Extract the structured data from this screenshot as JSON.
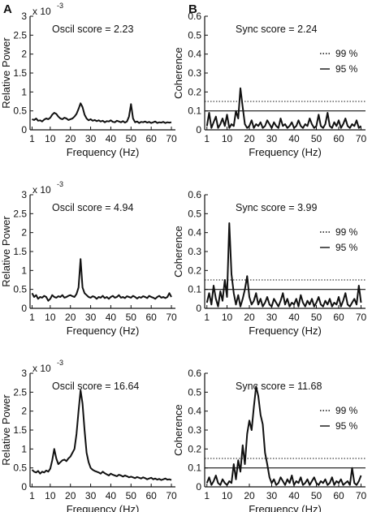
{
  "panel_labels": {
    "left": "A",
    "right": "B"
  },
  "chart_data": [
    {
      "type": "line",
      "panel": "A",
      "title": "Oscil score = 2.23",
      "xlabel": "Frequency (Hz)",
      "ylabel": "Relative Power",
      "y_exponent": {
        "base": "x 10",
        "exponent": "-3"
      },
      "xlim": [
        0,
        72
      ],
      "ylim": [
        0,
        3
      ],
      "xticks": [
        1,
        10,
        20,
        30,
        40,
        50,
        60,
        70
      ],
      "yticks": [
        0,
        0.5,
        1,
        1.5,
        2,
        2.5,
        3
      ],
      "ytick_labels": [
        "0",
        "0.5",
        "1",
        "1.5",
        "2",
        "2.5",
        "3"
      ],
      "series": [
        {
          "x": [
            1,
            2,
            3,
            4,
            5,
            6,
            7,
            8,
            9,
            10,
            11,
            12,
            13,
            14,
            15,
            16,
            17,
            18,
            19,
            20,
            21,
            22,
            23,
            24,
            25,
            26,
            27,
            28,
            29,
            30,
            31,
            32,
            33,
            34,
            35,
            36,
            37,
            38,
            39,
            40,
            41,
            42,
            43,
            44,
            45,
            46,
            47,
            48,
            49,
            50,
            51,
            52,
            53,
            54,
            55,
            56,
            57,
            58,
            59,
            60,
            61,
            62,
            63,
            64,
            65,
            66,
            67,
            68,
            69,
            70
          ],
          "y": [
            0.28,
            0.26,
            0.3,
            0.24,
            0.25,
            0.22,
            0.27,
            0.3,
            0.28,
            0.32,
            0.4,
            0.45,
            0.42,
            0.35,
            0.3,
            0.28,
            0.32,
            0.3,
            0.26,
            0.28,
            0.3,
            0.35,
            0.42,
            0.55,
            0.7,
            0.6,
            0.4,
            0.3,
            0.25,
            0.28,
            0.24,
            0.26,
            0.23,
            0.25,
            0.22,
            0.24,
            0.2,
            0.23,
            0.22,
            0.25,
            0.21,
            0.2,
            0.24,
            0.22,
            0.2,
            0.23,
            0.19,
            0.22,
            0.35,
            0.68,
            0.3,
            0.2,
            0.22,
            0.18,
            0.21,
            0.2,
            0.22,
            0.19,
            0.21,
            0.18,
            0.2,
            0.22,
            0.18,
            0.2,
            0.19,
            0.21,
            0.18,
            0.2,
            0.19,
            0.2
          ]
        }
      ]
    },
    {
      "type": "line",
      "panel": "B",
      "title": "Sync score = 2.24",
      "xlabel": "Frequency (Hz)",
      "ylabel": "Coherence",
      "xlim": [
        0,
        72
      ],
      "ylim": [
        0,
        0.6
      ],
      "xticks": [
        1,
        10,
        20,
        30,
        40,
        50,
        60,
        70
      ],
      "yticks": [
        0,
        0.1,
        0.2,
        0.3,
        0.4,
        0.5,
        0.6
      ],
      "ytick_labels": [
        "0",
        "0.1",
        "0.2",
        "0.3",
        "0.4",
        "0.5",
        "0.6"
      ],
      "thresholds": [
        {
          "name": "99 %",
          "value": 0.15,
          "style": "dotted"
        },
        {
          "name": "95 %",
          "value": 0.1,
          "style": "solid"
        }
      ],
      "series": [
        {
          "x": [
            1,
            2,
            3,
            4,
            5,
            6,
            7,
            8,
            9,
            10,
            11,
            12,
            13,
            14,
            15,
            16,
            17,
            18,
            19,
            20,
            21,
            22,
            23,
            24,
            25,
            26,
            27,
            28,
            29,
            30,
            31,
            32,
            33,
            34,
            35,
            36,
            37,
            38,
            39,
            40,
            41,
            42,
            43,
            44,
            45,
            46,
            47,
            48,
            49,
            50,
            51,
            52,
            53,
            54,
            55,
            56,
            57,
            58,
            59,
            60,
            61,
            62,
            63,
            64,
            65,
            66,
            67,
            68,
            69,
            70
          ],
          "y": [
            0.02,
            0.09,
            0.01,
            0.04,
            0.07,
            0.01,
            0.03,
            0.06,
            0.02,
            0.08,
            0.01,
            0.03,
            0.02,
            0.1,
            0.06,
            0.22,
            0.12,
            0.03,
            0.01,
            0.02,
            0.05,
            0.01,
            0.03,
            0.02,
            0.04,
            0.01,
            0.02,
            0.05,
            0.03,
            0.01,
            0.04,
            0.02,
            0.01,
            0.06,
            0.02,
            0.03,
            0.01,
            0.02,
            0.04,
            0.01,
            0.02,
            0.05,
            0.02,
            0.01,
            0.03,
            0.02,
            0.06,
            0.03,
            0.01,
            0.02,
            0.08,
            0.02,
            0.01,
            0.03,
            0.09,
            0.02,
            0.01,
            0.04,
            0.02,
            0.05,
            0.01,
            0.03,
            0.06,
            0.02,
            0.01,
            0.03,
            0.02,
            0.05,
            0.01,
            0.02
          ]
        }
      ]
    },
    {
      "type": "line",
      "panel": "A",
      "title": "Oscil score = 4.94",
      "xlabel": "Frequency (Hz)",
      "ylabel": "Relative Power",
      "y_exponent": {
        "base": "x 10",
        "exponent": "-3"
      },
      "xlim": [
        0,
        72
      ],
      "ylim": [
        0,
        3
      ],
      "xticks": [
        1,
        10,
        20,
        30,
        40,
        50,
        60,
        70
      ],
      "yticks": [
        0,
        0.5,
        1,
        1.5,
        2,
        2.5,
        3
      ],
      "ytick_labels": [
        "0",
        "0.5",
        "1",
        "1.5",
        "2",
        "2.5",
        "3"
      ],
      "series": [
        {
          "x": [
            1,
            2,
            3,
            4,
            5,
            6,
            7,
            8,
            9,
            10,
            11,
            12,
            13,
            14,
            15,
            16,
            17,
            18,
            19,
            20,
            21,
            22,
            23,
            24,
            25,
            26,
            27,
            28,
            29,
            30,
            31,
            32,
            33,
            34,
            35,
            36,
            37,
            38,
            39,
            40,
            41,
            42,
            43,
            44,
            45,
            46,
            47,
            48,
            49,
            50,
            51,
            52,
            53,
            54,
            55,
            56,
            57,
            58,
            59,
            60,
            61,
            62,
            63,
            64,
            65,
            66,
            67,
            68,
            69,
            70
          ],
          "y": [
            0.4,
            0.3,
            0.35,
            0.25,
            0.3,
            0.28,
            0.33,
            0.3,
            0.2,
            0.25,
            0.35,
            0.3,
            0.28,
            0.32,
            0.3,
            0.35,
            0.28,
            0.3,
            0.33,
            0.35,
            0.32,
            0.3,
            0.38,
            0.55,
            1.3,
            0.55,
            0.4,
            0.35,
            0.3,
            0.28,
            0.32,
            0.3,
            0.25,
            0.3,
            0.28,
            0.33,
            0.27,
            0.3,
            0.25,
            0.3,
            0.33,
            0.28,
            0.3,
            0.35,
            0.28,
            0.3,
            0.27,
            0.32,
            0.3,
            0.28,
            0.33,
            0.3,
            0.26,
            0.3,
            0.28,
            0.32,
            0.3,
            0.27,
            0.33,
            0.3,
            0.28,
            0.25,
            0.3,
            0.33,
            0.28,
            0.3,
            0.27,
            0.3,
            0.4,
            0.3
          ]
        }
      ]
    },
    {
      "type": "line",
      "panel": "B",
      "title": "Sync score = 3.99",
      "xlabel": "Frequency (Hz)",
      "ylabel": "Coherence",
      "xlim": [
        0,
        72
      ],
      "ylim": [
        0,
        0.6
      ],
      "xticks": [
        1,
        10,
        20,
        30,
        40,
        50,
        60,
        70
      ],
      "yticks": [
        0,
        0.1,
        0.2,
        0.3,
        0.4,
        0.5,
        0.6
      ],
      "ytick_labels": [
        "0",
        "0.1",
        "0.2",
        "0.3",
        "0.4",
        "0.5",
        "0.6"
      ],
      "thresholds": [
        {
          "name": "99 %",
          "value": 0.15,
          "style": "dotted"
        },
        {
          "name": "95 %",
          "value": 0.1,
          "style": "solid"
        }
      ],
      "series": [
        {
          "x": [
            1,
            2,
            3,
            4,
            5,
            6,
            7,
            8,
            9,
            10,
            11,
            12,
            13,
            14,
            15,
            16,
            17,
            18,
            19,
            20,
            21,
            22,
            23,
            24,
            25,
            26,
            27,
            28,
            29,
            30,
            31,
            32,
            33,
            34,
            35,
            36,
            37,
            38,
            39,
            40,
            41,
            42,
            43,
            44,
            45,
            46,
            47,
            48,
            49,
            50,
            51,
            52,
            53,
            54,
            55,
            56,
            57,
            58,
            59,
            60,
            61,
            62,
            63,
            64,
            65,
            66,
            67,
            68,
            69,
            70
          ],
          "y": [
            0.03,
            0.08,
            0.02,
            0.12,
            0.05,
            0.01,
            0.09,
            0.04,
            0.15,
            0.06,
            0.45,
            0.18,
            0.08,
            0.02,
            0.07,
            0.01,
            0.05,
            0.1,
            0.17,
            0.06,
            0.02,
            0.04,
            0.08,
            0.02,
            0.05,
            0.01,
            0.03,
            0.06,
            0.02,
            0.01,
            0.05,
            0.03,
            0.01,
            0.04,
            0.08,
            0.02,
            0.05,
            0.01,
            0.03,
            0.02,
            0.05,
            0.01,
            0.07,
            0.03,
            0.01,
            0.04,
            0.02,
            0.05,
            0.01,
            0.03,
            0.06,
            0.02,
            0.01,
            0.04,
            0.02,
            0.05,
            0.01,
            0.03,
            0.02,
            0.06,
            0.01,
            0.04,
            0.08,
            0.02,
            0.01,
            0.03,
            0.05,
            0.02,
            0.12,
            0.03
          ]
        }
      ]
    },
    {
      "type": "line",
      "panel": "A",
      "title": "Oscil score = 16.64",
      "xlabel": "Frequency (Hz)",
      "ylabel": "Relative Power",
      "y_exponent": {
        "base": "x 10",
        "exponent": "-3"
      },
      "xlim": [
        0,
        72
      ],
      "ylim": [
        0,
        3
      ],
      "xticks": [
        1,
        10,
        20,
        30,
        40,
        50,
        60,
        70
      ],
      "yticks": [
        0,
        0.5,
        1,
        1.5,
        2,
        2.5,
        3
      ],
      "ytick_labels": [
        "0",
        "0.5",
        "1",
        "1.5",
        "2",
        "2.5",
        "3"
      ],
      "series": [
        {
          "x": [
            1,
            2,
            3,
            4,
            5,
            6,
            7,
            8,
            9,
            10,
            11,
            12,
            13,
            14,
            15,
            16,
            17,
            18,
            19,
            20,
            21,
            22,
            23,
            24,
            25,
            26,
            27,
            28,
            29,
            30,
            31,
            32,
            33,
            34,
            35,
            36,
            37,
            38,
            39,
            40,
            41,
            42,
            43,
            44,
            45,
            46,
            47,
            48,
            49,
            50,
            51,
            52,
            53,
            54,
            55,
            56,
            57,
            58,
            59,
            60,
            61,
            62,
            63,
            64,
            65,
            66,
            67,
            68,
            69,
            70
          ],
          "y": [
            0.45,
            0.4,
            0.38,
            0.42,
            0.35,
            0.4,
            0.38,
            0.43,
            0.4,
            0.48,
            0.7,
            1.0,
            0.75,
            0.6,
            0.65,
            0.7,
            0.72,
            0.68,
            0.75,
            0.8,
            0.9,
            1.0,
            1.4,
            2.0,
            2.55,
            2.2,
            1.5,
            0.9,
            0.65,
            0.5,
            0.45,
            0.42,
            0.4,
            0.38,
            0.35,
            0.4,
            0.36,
            0.33,
            0.3,
            0.35,
            0.32,
            0.3,
            0.28,
            0.32,
            0.3,
            0.27,
            0.3,
            0.28,
            0.25,
            0.27,
            0.25,
            0.23,
            0.26,
            0.24,
            0.22,
            0.25,
            0.23,
            0.2,
            0.22,
            0.24,
            0.2,
            0.22,
            0.19,
            0.21,
            0.18,
            0.2,
            0.22,
            0.19,
            0.2,
            0.18
          ]
        }
      ]
    },
    {
      "type": "line",
      "panel": "B",
      "title": "Sync score = 11.68",
      "xlabel": "Frequency (Hz)",
      "ylabel": "Coherence",
      "xlim": [
        0,
        72
      ],
      "ylim": [
        0,
        0.6
      ],
      "xticks": [
        1,
        10,
        20,
        30,
        40,
        50,
        60,
        70
      ],
      "yticks": [
        0,
        0.1,
        0.2,
        0.3,
        0.4,
        0.5,
        0.6
      ],
      "ytick_labels": [
        "0",
        "0.1",
        "0.2",
        "0.3",
        "0.4",
        "0.5",
        "0.6"
      ],
      "thresholds": [
        {
          "name": "99 %",
          "value": 0.15,
          "style": "dotted"
        },
        {
          "name": "95 %",
          "value": 0.1,
          "style": "solid"
        }
      ],
      "series": [
        {
          "x": [
            1,
            2,
            3,
            4,
            5,
            6,
            7,
            8,
            9,
            10,
            11,
            12,
            13,
            14,
            15,
            16,
            17,
            18,
            19,
            20,
            21,
            22,
            23,
            24,
            25,
            26,
            27,
            28,
            29,
            30,
            31,
            32,
            33,
            34,
            35,
            36,
            37,
            38,
            39,
            40,
            41,
            42,
            43,
            44,
            45,
            46,
            47,
            48,
            49,
            50,
            51,
            52,
            53,
            54,
            55,
            56,
            57,
            58,
            59,
            60,
            61,
            62,
            63,
            64,
            65,
            66,
            67,
            68,
            69,
            70
          ],
          "y": [
            0.02,
            0.05,
            0.01,
            0.03,
            0.06,
            0.02,
            0.01,
            0.04,
            0.02,
            0.01,
            0.03,
            0.02,
            0.12,
            0.04,
            0.14,
            0.08,
            0.22,
            0.12,
            0.28,
            0.35,
            0.3,
            0.42,
            0.53,
            0.48,
            0.38,
            0.33,
            0.18,
            0.12,
            0.05,
            0.02,
            0.04,
            0.01,
            0.02,
            0.05,
            0.03,
            0.01,
            0.04,
            0.02,
            0.06,
            0.01,
            0.03,
            0.02,
            0.05,
            0.01,
            0.02,
            0.04,
            0.01,
            0.03,
            0.05,
            0.02,
            0.01,
            0.03,
            0.02,
            0.04,
            0.01,
            0.02,
            0.05,
            0.01,
            0.03,
            0.02,
            0.04,
            0.01,
            0.02,
            0.03,
            0.01,
            0.1,
            0.02,
            0.01,
            0.03,
            0.06
          ]
        }
      ]
    }
  ]
}
